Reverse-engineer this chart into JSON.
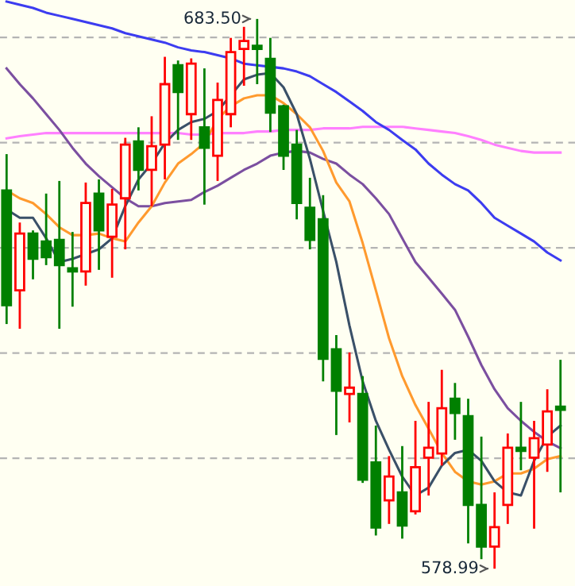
{
  "chart_data": {
    "type": "candlestick",
    "categories": [
      null,
      null,
      null,
      null,
      null,
      null,
      null,
      null,
      null,
      null,
      null,
      null,
      null,
      null,
      null,
      null,
      null,
      null,
      null,
      null,
      null,
      null,
      null,
      null,
      null,
      null,
      null,
      null,
      null,
      null,
      null,
      null,
      null,
      null,
      null,
      null,
      null,
      null,
      null,
      null,
      null,
      null,
      null
    ],
    "ohlc": [
      [
        650.9,
        657.8,
        625.5,
        629.1
      ],
      [
        631.9,
        644.8,
        624.6,
        642.7
      ],
      [
        642.7,
        643.3,
        634.0,
        637.9
      ],
      [
        641.2,
        650.3,
        636.7,
        638.2
      ],
      [
        641.5,
        652.7,
        624.6,
        636.7
      ],
      [
        636.1,
        643.0,
        628.8,
        635.5
      ],
      [
        635.5,
        652.4,
        632.8,
        648.5
      ],
      [
        650.3,
        653.0,
        635.8,
        643.3
      ],
      [
        642.1,
        651.2,
        634.3,
        648.2
      ],
      [
        649.4,
        660.9,
        639.7,
        659.6
      ],
      [
        660.2,
        662.9,
        650.9,
        654.8
      ],
      [
        654.8,
        665.0,
        647.9,
        659.3
      ],
      [
        659.6,
        676.3,
        653.0,
        671.1
      ],
      [
        674.7,
        675.6,
        660.5,
        669.6
      ],
      [
        665.4,
        676.0,
        660.5,
        675.0
      ],
      [
        662.9,
        674.1,
        648.2,
        659.0
      ],
      [
        657.5,
        671.4,
        652.7,
        668.1
      ],
      [
        665.4,
        679.9,
        662.9,
        677.2
      ],
      [
        677.8,
        682.0,
        670.8,
        679.3
      ],
      [
        678.4,
        683.5,
        671.1,
        677.8
      ],
      [
        675.9,
        679.9,
        662.0,
        665.7
      ],
      [
        666.9,
        667.2,
        654.8,
        657.5
      ],
      [
        659.6,
        662.4,
        645.4,
        648.5
      ],
      [
        647.6,
        653.3,
        639.7,
        641.5
      ],
      [
        645.4,
        650.0,
        614.6,
        618.9
      ],
      [
        620.7,
        623.4,
        604.4,
        612.8
      ],
      [
        612.2,
        620.1,
        606.8,
        613.4
      ],
      [
        612.2,
        615.6,
        595.3,
        595.9
      ],
      [
        599.2,
        606.2,
        585.3,
        586.8
      ],
      [
        592.0,
        600.4,
        587.5,
        596.5
      ],
      [
        593.5,
        602.3,
        584.7,
        587.2
      ],
      [
        589.9,
        607.1,
        589.3,
        598.3
      ],
      [
        600.1,
        610.7,
        592.9,
        602.0
      ],
      [
        600.9,
        616.8,
        598.6,
        609.5
      ],
      [
        611.3,
        614.3,
        603.5,
        608.6
      ],
      [
        608.0,
        611.3,
        583.8,
        591.1
      ],
      [
        591.1,
        604.1,
        580.8,
        583.2
      ],
      [
        583.2,
        593.5,
        578.99,
        586.9
      ],
      [
        591.1,
        604.7,
        587.5,
        602.0
      ],
      [
        602.0,
        610.7,
        597.7,
        601.4
      ],
      [
        600.1,
        607.1,
        586.6,
        603.8
      ],
      [
        602.6,
        613.1,
        597.4,
        608.9
      ],
      [
        609.8,
        618.7,
        593.5,
        609.2
      ]
    ],
    "colors": [
      "#008000",
      "#ff0000",
      "#008000",
      "#008000",
      "#008000",
      "#008000",
      "#ff0000",
      "#008000",
      "#ff0000",
      "#ff0000",
      "#008000",
      "#ff0000",
      "#ff0000",
      "#008000",
      "#ff0000",
      "#008000",
      "#ff0000",
      "#ff0000",
      "#ff0000",
      "#008000",
      "#008000",
      "#008000",
      "#008000",
      "#008000",
      "#008000",
      "#008000",
      "#ff0000",
      "#008000",
      "#008000",
      "#ff0000",
      "#008000",
      "#ff0000",
      "#ff0000",
      "#ff0000",
      "#008000",
      "#008000",
      "#008000",
      "#ff0000",
      "#ff0000",
      "#008000",
      "#ff0000",
      "#ff0000",
      "#008000"
    ],
    "series": [
      {
        "type": "line",
        "color": "#ff80ff",
        "values": [
          660.8,
          661.2,
          661.5,
          661.8,
          661.8,
          661.8,
          661.8,
          661.8,
          661.8,
          661.8,
          661.8,
          661.8,
          661.8,
          661.8,
          661.5,
          661.5,
          661.8,
          661.8,
          661.8,
          662.1,
          662.1,
          662.4,
          662.4,
          662.4,
          662.7,
          662.7,
          662.7,
          663.0,
          663.0,
          663.0,
          663.0,
          662.7,
          662.4,
          662.1,
          661.8,
          661.2,
          660.5,
          659.6,
          659.0,
          658.4,
          658.1,
          658.1,
          658.1
        ]
      },
      {
        "type": "line",
        "color": "#3c3cf0",
        "values": [
          686.8,
          686.2,
          685.6,
          684.7,
          684.1,
          683.5,
          682.9,
          682.3,
          681.7,
          680.8,
          680.2,
          679.6,
          679.0,
          678.1,
          677.5,
          677.2,
          676.6,
          676.0,
          675.0,
          674.7,
          674.4,
          674.1,
          673.5,
          672.6,
          671.1,
          669.6,
          667.8,
          666.0,
          663.9,
          662.4,
          660.5,
          658.7,
          656.0,
          653.9,
          652.1,
          650.9,
          648.5,
          645.7,
          644.2,
          642.7,
          641.2,
          639.1,
          637.6
        ]
      },
      {
        "type": "line",
        "color": "#7b4fa0",
        "values": [
          674.1,
          671.1,
          668.4,
          665.4,
          662.4,
          659.0,
          656.0,
          653.6,
          651.5,
          649.4,
          647.9,
          647.9,
          648.5,
          648.8,
          649.1,
          650.6,
          651.8,
          653.3,
          654.8,
          656.0,
          657.5,
          658.1,
          658.4,
          658.1,
          656.9,
          656.0,
          653.9,
          652.1,
          649.4,
          646.4,
          641.8,
          637.3,
          634.3,
          631.3,
          628.2,
          623.1,
          617.7,
          613.1,
          609.5,
          607.1,
          605.0,
          603.2,
          601.9
        ]
      },
      {
        "type": "line",
        "color": "#ff9a2e",
        "values": [
          650.9,
          649.4,
          648.5,
          646.4,
          643.9,
          642.4,
          642.4,
          642.7,
          641.8,
          641.2,
          644.8,
          647.9,
          652.4,
          656.0,
          657.8,
          659.9,
          664.5,
          666.9,
          668.4,
          669.0,
          669.0,
          667.5,
          665.4,
          662.9,
          658.4,
          652.4,
          648.8,
          640.9,
          631.9,
          622.8,
          615.6,
          610.1,
          605.6,
          601.0,
          597.4,
          595.6,
          595.0,
          595.6,
          597.1,
          597.1,
          598.0,
          599.8,
          600.4
        ]
      },
      {
        "type": "line",
        "color": "#3a5068",
        "values": [
          647.3,
          645.7,
          645.7,
          641.8,
          637.3,
          637.9,
          638.8,
          639.7,
          641.8,
          647.9,
          653.0,
          656.0,
          659.9,
          662.4,
          663.9,
          664.5,
          666.0,
          669.0,
          672.0,
          672.9,
          673.2,
          670.5,
          665.4,
          656.9,
          647.0,
          637.3,
          625.2,
          614.6,
          607.1,
          601.6,
          596.5,
          592.9,
          594.4,
          598.6,
          601.0,
          601.6,
          599.5,
          595.6,
          593.5,
          592.9,
          599.5,
          604.1,
          606.2
        ]
      }
    ],
    "ylim": [
      575.7,
      687.1
    ],
    "yticks": [
      {
        "value": 600,
        "label": null
      },
      {
        "value": 620,
        "label": null
      },
      {
        "value": 640,
        "label": null
      },
      {
        "value": 660,
        "label": null
      },
      {
        "value": 680,
        "label": null
      }
    ],
    "grid": "y",
    "annotations": [
      "683.50",
      "578.99"
    ]
  }
}
